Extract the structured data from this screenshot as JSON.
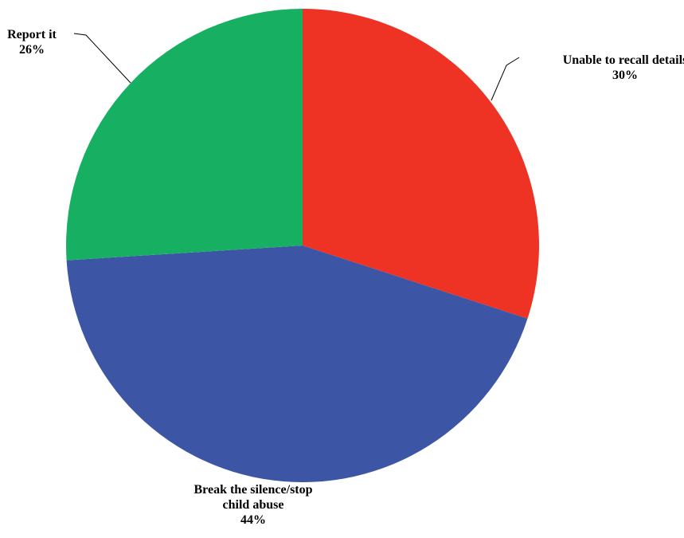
{
  "chart_data": {
    "type": "pie",
    "slices": [
      {
        "label_lines": [
          "Unable to recall details"
        ],
        "value": 30,
        "value_label": "30%",
        "color": "#EE3224"
      },
      {
        "label_lines": [
          "Break the silence/stop",
          "child abuse"
        ],
        "value": 44,
        "value_label": "44%",
        "color": "#3C56A5"
      },
      {
        "label_lines": [
          "Report it"
        ],
        "value": 26,
        "value_label": "26%",
        "color": "#17B062"
      }
    ],
    "start_angle_deg": 0,
    "direction": "clockwise",
    "legend": "none"
  }
}
